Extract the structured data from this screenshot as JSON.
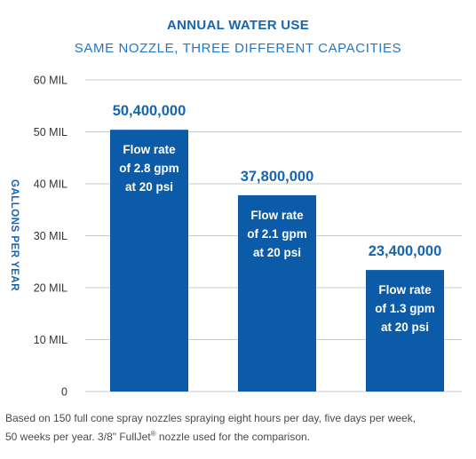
{
  "colors": {
    "bar": "#0b5ba8",
    "accent": "#1565b0",
    "grid": "#c8c8c8"
  },
  "footnote": {
    "line1": "Based on 150 full cone spray nozzles spraying eight hours per day, five days per week,",
    "line2_a": "50 weeks per year. 3/8\" FullJet",
    "line2_sup": "®",
    "line2_b": " nozzle used for the comparison."
  },
  "chart_data": {
    "type": "bar",
    "title": "ANNUAL WATER USE",
    "subtitle": "SAME NOZZLE, THREE DIFFERENT CAPACITIES",
    "ylabel": "GALLONS PER YEAR",
    "xlabel": "",
    "ylim": [
      0,
      60000000
    ],
    "yticks": [
      {
        "value": 0,
        "label": "0"
      },
      {
        "value": 10000000,
        "label": "10 MIL"
      },
      {
        "value": 20000000,
        "label": "20 MIL"
      },
      {
        "value": 30000000,
        "label": "30 MIL"
      },
      {
        "value": 40000000,
        "label": "40 MIL"
      },
      {
        "value": 50000000,
        "label": "50 MIL"
      },
      {
        "value": 60000000,
        "label": "60 MIL"
      }
    ],
    "grid": true,
    "bars": [
      {
        "value": 50400000,
        "value_label": "50,400,000",
        "text": [
          "Flow rate",
          "of 2.8 gpm",
          "at 20 psi"
        ]
      },
      {
        "value": 37800000,
        "value_label": "37,800,000",
        "text": [
          "Flow rate",
          "of 2.1 gpm",
          "at 20 psi"
        ]
      },
      {
        "value": 23400000,
        "value_label": "23,400,000",
        "text": [
          "Flow rate",
          "of 1.3 gpm",
          "at 20 psi"
        ]
      }
    ]
  }
}
